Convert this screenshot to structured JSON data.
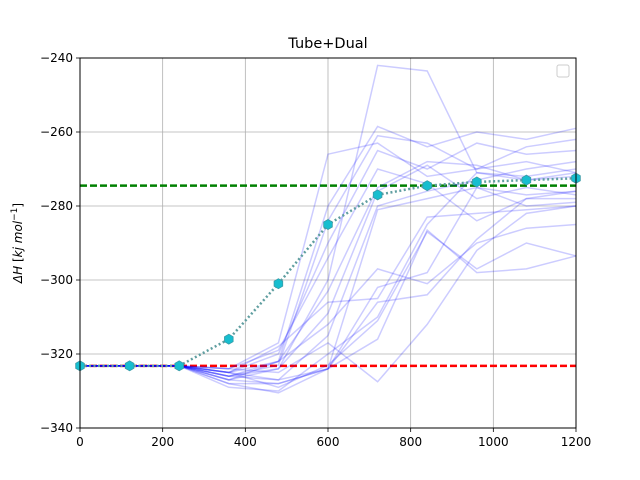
{
  "chart_data": {
    "type": "line",
    "title": "Tube+Dual",
    "xlabel": "",
    "ylabel": "ΔH [kj mol⁻¹]",
    "ylabel_parts": {
      "delta_h": "ΔH",
      "unit_open": " [",
      "unit_main": "kj mol",
      "unit_exp": "−1",
      "unit_close": "]"
    },
    "xlim": [
      0,
      1200
    ],
    "ylim": [
      -340,
      -240
    ],
    "xticks": [
      0,
      200,
      400,
      600,
      800,
      1000,
      1200
    ],
    "yticks": [
      -340,
      -320,
      -300,
      -280,
      -260,
      -240
    ],
    "xtick_labels": [
      "0",
      "200",
      "400",
      "600",
      "800",
      "1000",
      "1200"
    ],
    "ytick_labels": [
      "−340",
      "−320",
      "−300",
      "−280",
      "−260",
      "−240"
    ],
    "grid": true,
    "legend": {
      "placement": "upper-right",
      "entries": []
    },
    "x": [
      0,
      120,
      240,
      360,
      480,
      600,
      720,
      840,
      960,
      1080,
      1200
    ],
    "reference_lines": [
      {
        "y": -274.5,
        "color": "#008000",
        "style": "dashed"
      },
      {
        "y": -323.2,
        "color": "#ff0000",
        "style": "dashed"
      }
    ],
    "trajectory_color": "#0000ff",
    "trajectories": [
      [
        -323.2,
        -323.2,
        -323.2,
        -326,
        -324,
        -300,
        -242,
        -243.5,
        -271,
        -272,
        -270
      ],
      [
        -323.2,
        -323.2,
        -323.2,
        -324,
        -317,
        -266,
        -263,
        -272,
        -270,
        -268,
        -271
      ],
      [
        -323.2,
        -323.2,
        -323.2,
        -327,
        -322,
        -280,
        -258.5,
        -264,
        -260,
        -262,
        -259
      ],
      [
        -323.2,
        -323.2,
        -323.2,
        -325,
        -320,
        -290,
        -265,
        -270,
        -263,
        -266,
        -265
      ],
      [
        -323.2,
        -323.2,
        -323.2,
        -328,
        -328,
        -324,
        -302,
        -298,
        -275,
        -280,
        -279
      ],
      [
        -323.2,
        -323.2,
        -323.2,
        -326,
        -322,
        -312,
        -297,
        -301,
        -290,
        -286,
        -285
      ],
      [
        -323.2,
        -323.2,
        -323.2,
        -325,
        -318,
        -306,
        -305,
        -283,
        -282,
        -281,
        -280
      ],
      [
        -323.2,
        -323.2,
        -323.2,
        -329,
        -330,
        -320,
        -310,
        -285,
        -271,
        -273,
        -272
      ],
      [
        -323.2,
        -323.2,
        -323.2,
        -324,
        -325,
        -317,
        -327.5,
        -312,
        -292,
        -282,
        -280
      ],
      [
        -323.2,
        -323.2,
        -323.2,
        -327,
        -328,
        -324,
        -306,
        -304,
        -289,
        -278,
        -278
      ],
      [
        -323.2,
        -323.2,
        -323.2,
        -325,
        -329,
        -323,
        -311,
        -287,
        -297,
        -290,
        -293.5
      ],
      [
        -323.2,
        -323.2,
        -323.2,
        -328,
        -330.5,
        -324,
        -316,
        -286.5,
        -298,
        -297,
        -293.5
      ],
      [
        -323.2,
        -323.2,
        -323.2,
        -326,
        -327,
        -324,
        -281,
        -278,
        -275,
        -277,
        -276
      ],
      [
        -323.2,
        -323.2,
        -323.2,
        -325,
        -322,
        -303,
        -275,
        -268,
        -269,
        -273,
        -271
      ],
      [
        -323.2,
        -323.2,
        -323.2,
        -324,
        -319,
        -294,
        -270,
        -274,
        -284,
        -278,
        -276
      ],
      [
        -323.2,
        -323.2,
        -323.2,
        -327,
        -324,
        -309,
        -276,
        -269,
        -278,
        -275,
        -277
      ],
      [
        -323.2,
        -323.2,
        -323.2,
        -326,
        -323,
        -284,
        -261,
        -263,
        -270,
        -264,
        -262
      ],
      [
        -323.2,
        -323.2,
        -323.2,
        -325,
        -327,
        -315,
        -280,
        -276,
        -273,
        -270,
        -268
      ]
    ],
    "mean_series": {
      "values": [
        -323.2,
        -323.2,
        -323.2,
        -316,
        -301,
        -285,
        -277,
        -274.5,
        -273.5,
        -273,
        -272.5
      ],
      "line_color": "#5f9ea0",
      "marker_color": "#17becf",
      "line_style": "dotted",
      "marker": "hexagon"
    }
  }
}
